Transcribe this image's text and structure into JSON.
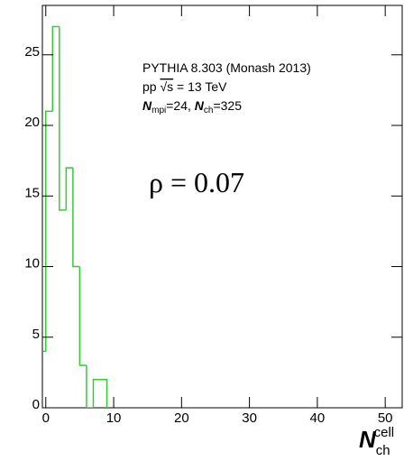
{
  "chart_data": {
    "type": "histogram",
    "bins": [
      -1,
      0,
      1,
      2,
      3,
      4,
      5,
      6,
      7,
      8,
      9
    ],
    "counts": [
      4,
      21,
      27,
      14,
      17,
      10,
      3,
      0,
      2,
      2
    ],
    "color": "#33cc33",
    "xlim": [
      -0.5,
      52.5
    ],
    "xticks": [
      0,
      10,
      20,
      30,
      40,
      50
    ],
    "ylim": [
      0,
      28.5
    ],
    "yticks": [
      0,
      5,
      10,
      15,
      20,
      25
    ],
    "xlabel": [
      "N",
      "ch",
      "cell"
    ],
    "annotations": [
      [
        "PYTHIA 8.303 (Monash 2013)"
      ],
      [
        "pp ",
        "√s",
        " = 13 TeV"
      ],
      [
        "N",
        "mpi",
        "=24, ",
        "N",
        "ch",
        "=325"
      ]
    ],
    "correlation": "ρ = 0.07",
    "correlation_color": "#3344dd"
  }
}
